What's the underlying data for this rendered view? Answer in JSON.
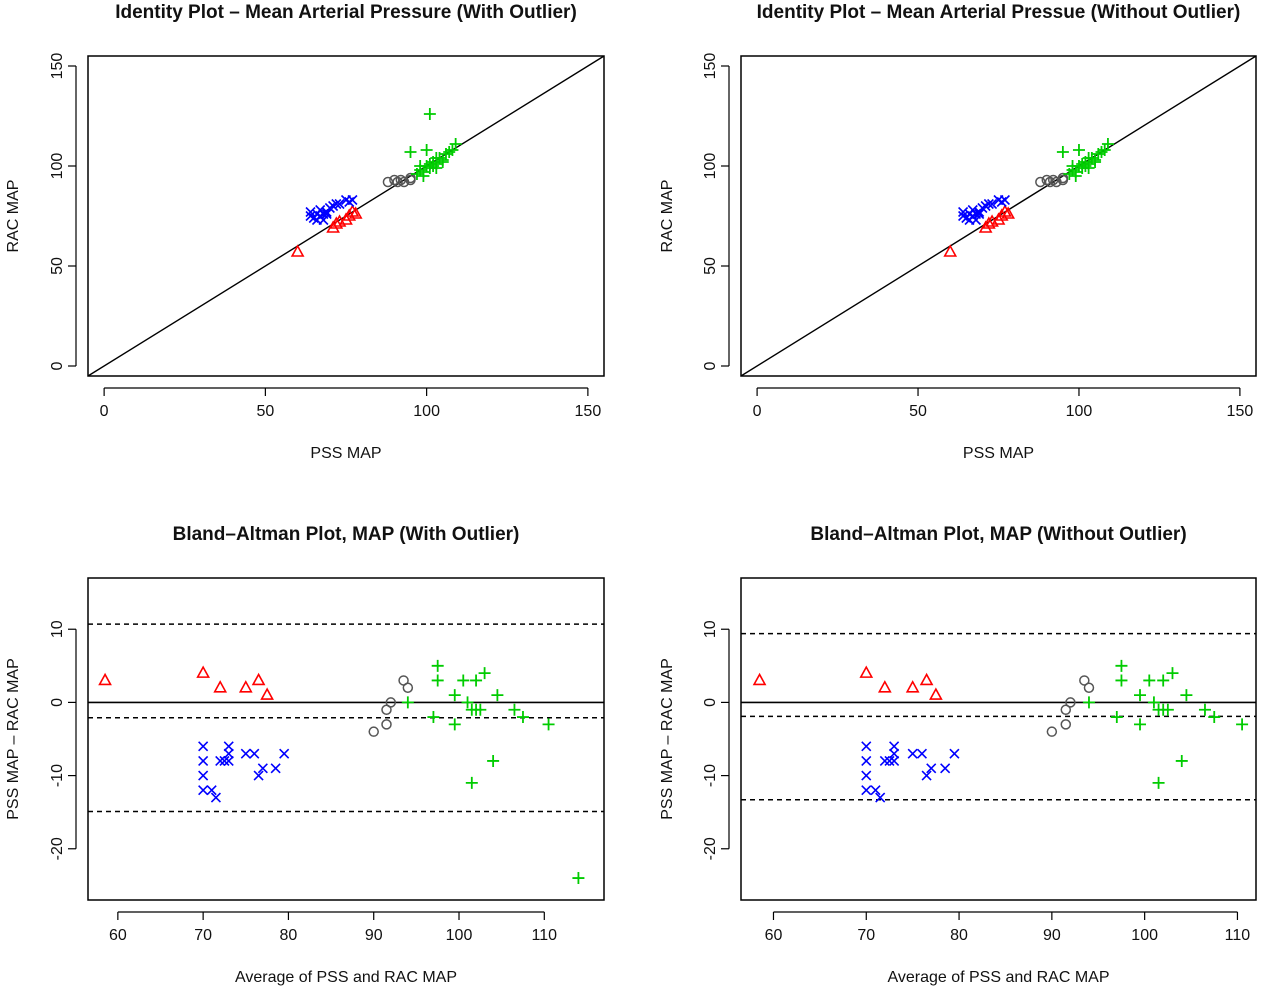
{
  "chart_data": [
    {
      "type": "scatter",
      "title": "Identity Plot – Mean Arterial Pressure (With Outlier)",
      "xlabel": "PSS MAP",
      "ylabel": "RAC MAP",
      "xlim": [
        -5,
        155
      ],
      "ylim": [
        -5,
        155
      ],
      "xticks": [
        0,
        50,
        100,
        150
      ],
      "yticks": [
        0,
        50,
        100,
        150
      ],
      "identity_line": true,
      "grid": false,
      "legend": "none",
      "series": [
        {
          "marker": "triangle",
          "color": "#ff0000",
          "points": [
            [
              60,
              57
            ],
            [
              71,
              69
            ],
            [
              72,
              71
            ],
            [
              75,
              73
            ],
            [
              76,
              75
            ],
            [
              77,
              77
            ],
            [
              78,
              76
            ],
            [
              73,
              72
            ]
          ]
        },
        {
          "marker": "x",
          "color": "#0000ff",
          "points": [
            [
              64,
              77
            ],
            [
              64,
              75
            ],
            [
              65,
              74
            ],
            [
              66,
              76
            ],
            [
              66,
              73
            ],
            [
              67,
              78
            ],
            [
              67,
              75
            ],
            [
              68,
              76
            ],
            [
              68,
              73
            ],
            [
              69,
              77
            ],
            [
              69,
              76
            ],
            [
              70,
              79
            ],
            [
              71,
              80
            ],
            [
              72,
              81
            ],
            [
              73,
              81
            ],
            [
              75,
              83
            ],
            [
              76,
              82
            ],
            [
              77,
              83
            ]
          ]
        },
        {
          "marker": "circle",
          "color": "#555555",
          "points": [
            [
              88,
              92
            ],
            [
              90,
              93
            ],
            [
              91,
              92
            ],
            [
              92,
              93
            ],
            [
              93,
              92
            ],
            [
              95,
              93
            ],
            [
              95,
              94
            ]
          ]
        },
        {
          "marker": "plus",
          "color": "#00cc00",
          "points": [
            [
              95,
              107
            ],
            [
              97,
              96
            ],
            [
              98,
              98
            ],
            [
              99,
              95
            ],
            [
              99,
              97
            ],
            [
              100,
              108
            ],
            [
              100,
              100
            ],
            [
              101,
              99
            ],
            [
              101,
              101
            ],
            [
              101,
              126
            ],
            [
              102,
              102
            ],
            [
              102,
              100
            ],
            [
              103,
              99
            ],
            [
              103,
              104
            ],
            [
              104,
              104
            ],
            [
              105,
              102
            ],
            [
              105,
              103
            ],
            [
              106,
              106
            ],
            [
              107,
              107
            ],
            [
              108,
              108
            ],
            [
              109,
              111
            ],
            [
              103,
              101
            ],
            [
              98,
              100
            ]
          ]
        }
      ]
    },
    {
      "type": "scatter",
      "title": "Identity Plot – Mean Arterial Pressue (Without Outlier)",
      "xlabel": "PSS MAP",
      "ylabel": "RAC MAP",
      "xlim": [
        -5,
        155
      ],
      "ylim": [
        -5,
        155
      ],
      "xticks": [
        0,
        50,
        100,
        150
      ],
      "yticks": [
        0,
        50,
        100,
        150
      ],
      "identity_line": true,
      "grid": false,
      "legend": "none",
      "series": [
        {
          "marker": "triangle",
          "color": "#ff0000",
          "points": [
            [
              60,
              57
            ],
            [
              71,
              69
            ],
            [
              72,
              71
            ],
            [
              75,
              73
            ],
            [
              76,
              75
            ],
            [
              77,
              77
            ],
            [
              78,
              76
            ],
            [
              73,
              72
            ]
          ]
        },
        {
          "marker": "x",
          "color": "#0000ff",
          "points": [
            [
              64,
              77
            ],
            [
              64,
              75
            ],
            [
              65,
              74
            ],
            [
              66,
              76
            ],
            [
              66,
              73
            ],
            [
              67,
              78
            ],
            [
              67,
              75
            ],
            [
              68,
              76
            ],
            [
              68,
              73
            ],
            [
              69,
              77
            ],
            [
              69,
              76
            ],
            [
              70,
              79
            ],
            [
              71,
              80
            ],
            [
              72,
              81
            ],
            [
              73,
              81
            ],
            [
              75,
              83
            ],
            [
              76,
              82
            ],
            [
              77,
              83
            ]
          ]
        },
        {
          "marker": "circle",
          "color": "#555555",
          "points": [
            [
              88,
              92
            ],
            [
              90,
              93
            ],
            [
              91,
              92
            ],
            [
              92,
              93
            ],
            [
              93,
              92
            ],
            [
              95,
              93
            ],
            [
              95,
              94
            ]
          ]
        },
        {
          "marker": "plus",
          "color": "#00cc00",
          "points": [
            [
              95,
              107
            ],
            [
              97,
              96
            ],
            [
              98,
              98
            ],
            [
              99,
              95
            ],
            [
              99,
              97
            ],
            [
              100,
              108
            ],
            [
              100,
              100
            ],
            [
              101,
              99
            ],
            [
              101,
              101
            ],
            [
              102,
              102
            ],
            [
              102,
              100
            ],
            [
              103,
              99
            ],
            [
              103,
              104
            ],
            [
              104,
              104
            ],
            [
              105,
              102
            ],
            [
              105,
              103
            ],
            [
              106,
              106
            ],
            [
              107,
              107
            ],
            [
              108,
              108
            ],
            [
              109,
              111
            ],
            [
              103,
              101
            ],
            [
              98,
              100
            ]
          ]
        }
      ]
    },
    {
      "type": "scatter",
      "title": "Bland–Altman Plot, MAP (With Outlier)",
      "xlabel": "Average of PSS and RAC MAP",
      "ylabel": "PSS MAP – RAC MAP",
      "xlim": [
        56.5,
        117
      ],
      "ylim": [
        -27,
        17
      ],
      "xticks": [
        60,
        70,
        80,
        90,
        100,
        110
      ],
      "yticks": [
        -20,
        -10,
        0,
        10
      ],
      "zero_line": 0,
      "dashed_lines": [
        10.7,
        -2.1,
        -14.9
      ],
      "grid": false,
      "legend": "none",
      "series": [
        {
          "marker": "triangle",
          "color": "#ff0000",
          "points": [
            [
              58.5,
              3
            ],
            [
              70,
              4
            ],
            [
              72,
              2
            ],
            [
              75,
              2
            ],
            [
              76.5,
              3
            ],
            [
              77.5,
              1
            ]
          ]
        },
        {
          "marker": "x",
          "color": "#0000ff",
          "points": [
            [
              70,
              -6
            ],
            [
              70,
              -8
            ],
            [
              70,
              -10
            ],
            [
              70,
              -12
            ],
            [
              71,
              -12
            ],
            [
              71.5,
              -13
            ],
            [
              72,
              -8
            ],
            [
              72.5,
              -8
            ],
            [
              73,
              -7
            ],
            [
              73,
              -6
            ],
            [
              75,
              -7
            ],
            [
              76,
              -7
            ],
            [
              76.5,
              -10
            ],
            [
              77,
              -9
            ],
            [
              78.5,
              -9
            ],
            [
              79.5,
              -7
            ],
            [
              73,
              -8
            ]
          ]
        },
        {
          "marker": "circle",
          "color": "#555555",
          "points": [
            [
              90,
              -4
            ],
            [
              91.5,
              -3
            ],
            [
              91.5,
              -1
            ],
            [
              92,
              0
            ],
            [
              93.5,
              3
            ],
            [
              94,
              2
            ]
          ]
        },
        {
          "marker": "plus",
          "color": "#00cc00",
          "points": [
            [
              97.5,
              5
            ],
            [
              97.5,
              3
            ],
            [
              97,
              -2
            ],
            [
              99.5,
              1
            ],
            [
              99.5,
              -3
            ],
            [
              100.5,
              3
            ],
            [
              101,
              0
            ],
            [
              101.5,
              -1
            ],
            [
              101.5,
              -11
            ],
            [
              102,
              3
            ],
            [
              102,
              -1
            ],
            [
              102.5,
              -1
            ],
            [
              103,
              4
            ],
            [
              104,
              -8
            ],
            [
              104.5,
              1
            ],
            [
              106.5,
              -1
            ],
            [
              107.5,
              -2
            ],
            [
              110.5,
              -3
            ],
            [
              114,
              -24
            ],
            [
              94,
              0
            ]
          ]
        }
      ]
    },
    {
      "type": "scatter",
      "title": "Bland–Altman Plot, MAP (Without Outlier)",
      "xlabel": "Average of PSS and RAC MAP",
      "ylabel": "PSS MAP – RAC MAP",
      "xlim": [
        56.5,
        112
      ],
      "ylim": [
        -27,
        17
      ],
      "xticks": [
        60,
        70,
        80,
        90,
        100,
        110
      ],
      "yticks": [
        -20,
        -10,
        0,
        10
      ],
      "zero_line": 0,
      "dashed_lines": [
        9.4,
        -1.9,
        -13.3
      ],
      "grid": false,
      "legend": "none",
      "series": [
        {
          "marker": "triangle",
          "color": "#ff0000",
          "points": [
            [
              58.5,
              3
            ],
            [
              70,
              4
            ],
            [
              72,
              2
            ],
            [
              75,
              2
            ],
            [
              76.5,
              3
            ],
            [
              77.5,
              1
            ]
          ]
        },
        {
          "marker": "x",
          "color": "#0000ff",
          "points": [
            [
              70,
              -6
            ],
            [
              70,
              -8
            ],
            [
              70,
              -10
            ],
            [
              70,
              -12
            ],
            [
              71,
              -12
            ],
            [
              71.5,
              -13
            ],
            [
              72,
              -8
            ],
            [
              72.5,
              -8
            ],
            [
              73,
              -7
            ],
            [
              73,
              -6
            ],
            [
              75,
              -7
            ],
            [
              76,
              -7
            ],
            [
              76.5,
              -10
            ],
            [
              77,
              -9
            ],
            [
              78.5,
              -9
            ],
            [
              79.5,
              -7
            ],
            [
              73,
              -8
            ]
          ]
        },
        {
          "marker": "circle",
          "color": "#555555",
          "points": [
            [
              90,
              -4
            ],
            [
              91.5,
              -3
            ],
            [
              91.5,
              -1
            ],
            [
              92,
              0
            ],
            [
              93.5,
              3
            ],
            [
              94,
              2
            ]
          ]
        },
        {
          "marker": "plus",
          "color": "#00cc00",
          "points": [
            [
              97.5,
              5
            ],
            [
              97.5,
              3
            ],
            [
              97,
              -2
            ],
            [
              99.5,
              1
            ],
            [
              99.5,
              -3
            ],
            [
              100.5,
              3
            ],
            [
              101,
              0
            ],
            [
              101.5,
              -1
            ],
            [
              101.5,
              -11
            ],
            [
              102,
              3
            ],
            [
              102,
              -1
            ],
            [
              102.5,
              -1
            ],
            [
              103,
              4
            ],
            [
              104,
              -8
            ],
            [
              104.5,
              1
            ],
            [
              106.5,
              -1
            ],
            [
              107.5,
              -2
            ],
            [
              110.5,
              -3
            ],
            [
              94,
              0
            ]
          ]
        }
      ]
    }
  ]
}
